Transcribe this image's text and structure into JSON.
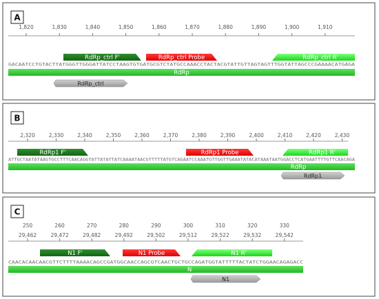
{
  "panels": [
    {
      "label": "A",
      "rulers": [
        [
          "1,820",
          "1,830",
          "1,840",
          "1,850",
          "1,860",
          "1,870",
          "1,880",
          "1,890",
          "1,900",
          "1,910"
        ]
      ],
      "features": [
        {
          "label": "RdRp_ctrl F'",
          "kind": "forward"
        },
        {
          "label": "RdRp_ctrl Probe",
          "kind": "probe"
        },
        {
          "label": "RdRp_ctrl R'",
          "kind": "reverse"
        }
      ],
      "sequence": "GACAATCCTGTACTTATGGGTTGGGATTATCCTAAGTGTGATGCGTCTATGCCAAACCTACTACGTATTGTTAGTAGTTTGGTATTAGCCCGAAAACATGAGA",
      "gene": "RdRp",
      "amplicon": "RdRp_ctrl"
    },
    {
      "label": "B",
      "rulers": [
        [
          "2,320",
          "2,330",
          "2,340",
          "2,350",
          "2,360",
          "2,370",
          "2,380",
          "2,390",
          "2,400",
          "2,410",
          "2,420",
          "2,430"
        ]
      ],
      "features": [
        {
          "label": "RdRp1 F'",
          "kind": "forward"
        },
        {
          "label": "RdRp1 Probe",
          "kind": "probe"
        },
        {
          "label": "RdRp1 R'",
          "kind": "reverse"
        }
      ],
      "sequence": "ATTGCTAATATAAGTGCCTTTCAACAGGTATTATATTATCAAAATAACGTTTTTATGTCAGAATCCAAATGTTGGTTGAAATATACATAAATAATGGACCTCATGAATTTTGTTCAACAGA",
      "gene": "RdRp",
      "amplicon": "RdRp1"
    },
    {
      "label": "C",
      "rulers": [
        [
          "250",
          "260",
          "270",
          "280",
          "290",
          "300",
          "310",
          "320",
          "330"
        ],
        [
          "29,462",
          "29,472",
          "29,482",
          "29,492",
          "29,502",
          "29,512",
          "29,522",
          "29,532",
          "29,542"
        ]
      ],
      "features": [
        {
          "label": "N1 F'",
          "kind": "forward"
        },
        {
          "label": "N1 Probe",
          "kind": "probe"
        },
        {
          "label": "N1 R'",
          "kind": "reverse"
        }
      ],
      "sequence": "CAACACAACAACGTTCTTTTAAAACAGCCGATGGCAACCAGCGTCAACTGCTGCCAGATGGTATTTTTACTATCTGGAACAGAGACC",
      "gene": "N",
      "amplicon": "N1"
    }
  ]
}
